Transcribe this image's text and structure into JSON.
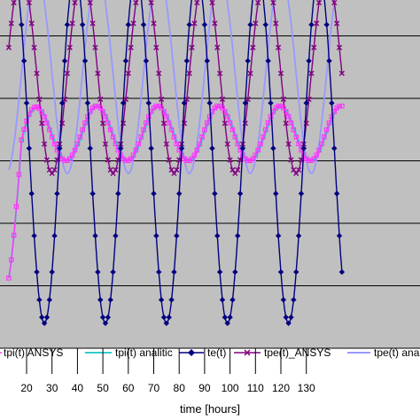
{
  "chart_data": {
    "type": "line",
    "xlabel": "time  [hours]",
    "ylabel": "",
    "title": "",
    "xlim": [
      13,
      144
    ],
    "ylim": [
      -50,
      10
    ],
    "y_gridlines": [
      -50,
      -40,
      -30,
      -20,
      -10,
      0,
      10
    ],
    "x_ticks": [
      20,
      30,
      40,
      50,
      60,
      70,
      80,
      90,
      100,
      110,
      120,
      130
    ],
    "x_tick_labels": [
      "20",
      "30",
      "40",
      "50",
      "60",
      "70",
      "80",
      "90",
      "100",
      "110",
      "120",
      "130"
    ],
    "plot_background": "#c0c0c0",
    "grid": true,
    "legend_position": "bottom",
    "series": [
      {
        "name": "tpi(t) ANSYS",
        "color": "#ff33ff",
        "marker": "square-open",
        "shape": "damped-start-sinusoid",
        "period_hours": 24,
        "mean": -15.6,
        "amplitude": 4.4,
        "peak_hours": [
          23.5,
          47.5,
          71.5,
          95.5,
          119.5,
          143.5
        ],
        "trough_hours": [
          35.5,
          59.5,
          83.5,
          107.5,
          131.5
        ]
      },
      {
        "name": "tpi(t) analitic",
        "color": "#33cccc",
        "marker": "none",
        "shape": "damped-start-sinusoid",
        "period_hours": 24,
        "mean": -15.6,
        "amplitude": 4.4
      },
      {
        "name": "te(t)",
        "color": "#000080",
        "marker": "diamond",
        "shape": "sinusoid",
        "period_hours": 24,
        "mean": -18,
        "amplitude": 28,
        "peak_hours": [
          15,
          39,
          63,
          87,
          111,
          135
        ],
        "trough_hours": [
          27,
          51,
          75,
          99,
          123
        ]
      },
      {
        "name": "tpe(t)_ANSYS",
        "color": "#800080",
        "marker": "x",
        "shape": "sinusoid",
        "period_hours": 24,
        "mean": -6,
        "amplitude": 16,
        "peak_hours": [
          18,
          42,
          66,
          90,
          114,
          138
        ],
        "trough_hours": [
          30,
          54,
          78,
          102,
          126
        ]
      },
      {
        "name": "tpe(t) analitic",
        "color": "#9999ff",
        "marker": "none",
        "shape": "sinusoid",
        "period_hours": 24,
        "mean": -6,
        "amplitude": 16
      }
    ]
  },
  "legend": [
    {
      "label": "tpi(t) ANSYS"
    },
    {
      "label": "tpi(t) analitic"
    },
    {
      "label": "te(t)"
    },
    {
      "label": "tpe(t)_ANSYS"
    },
    {
      "label": "tpe(t) analitic"
    }
  ]
}
